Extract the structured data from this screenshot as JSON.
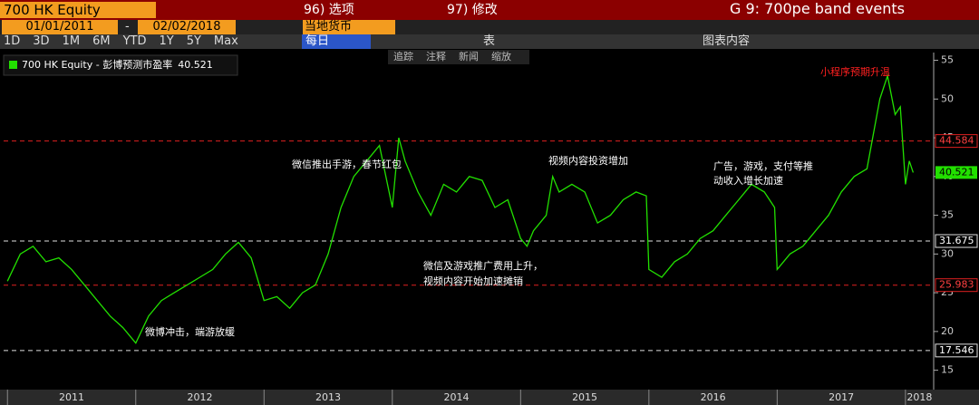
{
  "header": {
    "ticker": "700 HK Equity",
    "menu1": "96) 选项",
    "menu2": "97) 修改",
    "title": "G 9: 700pe band events",
    "start": "01/01/2011",
    "dash": "-",
    "end": "02/02/2018",
    "currency": "当地货币",
    "periods": [
      "1D",
      "3D",
      "1M",
      "6M",
      "YTD",
      "1Y",
      "5Y",
      "Max"
    ],
    "freq": "每日",
    "table": "表",
    "content": "图表内容",
    "tools": [
      "追踪",
      "注释",
      "新闻",
      "缩放"
    ]
  },
  "chart_data": {
    "type": "line",
    "series": [
      {
        "name": "700 HK Equity - 彭博预测市盈率",
        "color": "#22e000",
        "last_value": 40.521,
        "x": [
          2011.0,
          2011.1,
          2011.2,
          2011.3,
          2011.4,
          2011.5,
          2011.6,
          2011.7,
          2011.8,
          2011.9,
          2012.0,
          2012.1,
          2012.2,
          2012.3,
          2012.4,
          2012.5,
          2012.6,
          2012.7,
          2012.8,
          2012.9,
          2013.0,
          2013.1,
          2013.2,
          2013.3,
          2013.4,
          2013.5,
          2013.6,
          2013.7,
          2013.8,
          2013.9,
          2014.0,
          2014.05,
          2014.1,
          2014.2,
          2014.3,
          2014.4,
          2014.5,
          2014.6,
          2014.7,
          2014.8,
          2014.9,
          2015.0,
          2015.05,
          2015.1,
          2015.2,
          2015.25,
          2015.3,
          2015.4,
          2015.5,
          2015.6,
          2015.7,
          2015.8,
          2015.9,
          2015.98,
          2016.0,
          2016.1,
          2016.2,
          2016.3,
          2016.4,
          2016.5,
          2016.6,
          2016.7,
          2016.8,
          2016.9,
          2016.98,
          2017.0,
          2017.1,
          2017.2,
          2017.3,
          2017.4,
          2017.5,
          2017.6,
          2017.7,
          2017.8,
          2017.86,
          2017.92,
          2017.96,
          2018.0,
          2018.03,
          2018.06
        ],
        "values": [
          26.5,
          30,
          31,
          29,
          29.5,
          28,
          26,
          24,
          22,
          20.5,
          18.5,
          22,
          24,
          25,
          26,
          27,
          28,
          30,
          31.5,
          29.5,
          24,
          24.5,
          23,
          25,
          26,
          30,
          36,
          40,
          42,
          44,
          36,
          45,
          42,
          38,
          35,
          39,
          38,
          40,
          39.5,
          36,
          37,
          32,
          31,
          33,
          35,
          40,
          38,
          39,
          38,
          34,
          35,
          37,
          38,
          37.5,
          28,
          27,
          29,
          30,
          32,
          33,
          35,
          37,
          39,
          38,
          36,
          28,
          30,
          31,
          33,
          35,
          38,
          40,
          41,
          50,
          53,
          48,
          49,
          39,
          42,
          40.521
        ]
      }
    ],
    "reference_lines": [
      {
        "value": 44.584,
        "color": "#e02020"
      },
      {
        "value": 31.675,
        "color": "#e0e0e0"
      },
      {
        "value": 25.983,
        "color": "#e02020"
      },
      {
        "value": 17.546,
        "color": "#e0e0e0"
      }
    ],
    "annotations": [
      {
        "text": "小程序预期升温",
        "color": "#ff2020"
      },
      {
        "text": "微信推出手游，春节红包",
        "color": "#ffffff"
      },
      {
        "text": "视频内容投资增加",
        "color": "#ffffff"
      },
      {
        "text": "广告，游戏，支付等推",
        "color": "#ffffff"
      },
      {
        "text": "动收入增长加速",
        "color": "#ffffff"
      },
      {
        "text": "微信及游戏推广费用上升，",
        "color": "#ffffff"
      },
      {
        "text": "视频内容开始加速摊销",
        "color": "#ffffff"
      },
      {
        "text": "微博冲击，端游放缓",
        "color": "#ffffff"
      }
    ],
    "xlim": [
      2010.97,
      2018.22
    ],
    "xticks": [
      {
        "value": 2011,
        "label": "2011"
      },
      {
        "value": 2012,
        "label": "2012"
      },
      {
        "value": 2013,
        "label": "2013"
      },
      {
        "value": 2014,
        "label": "2014"
      },
      {
        "value": 2015,
        "label": "2015"
      },
      {
        "value": 2016,
        "label": "2016"
      },
      {
        "value": 2017,
        "label": "2017"
      },
      {
        "value": 2018,
        "label": "2018"
      }
    ],
    "ylim": [
      12.5,
      56
    ],
    "yticks": [
      15,
      20,
      25,
      30,
      35,
      40,
      45,
      50,
      55
    ]
  }
}
